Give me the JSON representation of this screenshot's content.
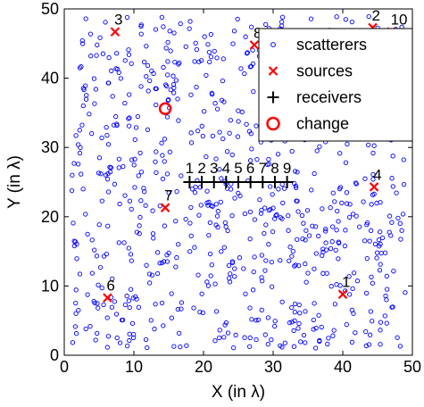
{
  "chart_data": {
    "type": "scatter",
    "title": "",
    "xlabel": "X (in λ)",
    "ylabel": "Y (in λ)",
    "xlim": [
      0,
      50
    ],
    "ylim": [
      0,
      50
    ],
    "xticks": [
      0,
      10,
      20,
      30,
      40,
      50
    ],
    "yticks": [
      0,
      10,
      20,
      30,
      40,
      50
    ],
    "grid": false,
    "legend_position": "top-right",
    "colors": {
      "scatterers": "#0000ff",
      "sources": "#ff0000",
      "receivers": "#000000",
      "change": "#ff0000"
    },
    "legend": [
      {
        "key": "scatterers",
        "label": "scatterers",
        "marker": "circle"
      },
      {
        "key": "sources",
        "label": "sources",
        "marker": "x"
      },
      {
        "key": "receivers",
        "label": "receivers",
        "marker": "plus"
      },
      {
        "key": "change",
        "label": "change",
        "marker": "large-circle"
      }
    ],
    "sources": [
      {
        "label": "1",
        "x": 40.0,
        "y": 8.8
      },
      {
        "label": "2",
        "x": 44.3,
        "y": 47.3
      },
      {
        "label": "3",
        "x": 7.3,
        "y": 46.7
      },
      {
        "label": "4",
        "x": 44.5,
        "y": 24.3
      },
      {
        "label": "6",
        "x": 6.2,
        "y": 8.3
      },
      {
        "label": "7",
        "x": 14.5,
        "y": 21.3
      },
      {
        "label": "8",
        "x": 27.3,
        "y": 44.8
      },
      {
        "label": "10",
        "x": 47.0,
        "y": 46.7
      }
    ],
    "receivers": {
      "y": 25,
      "points": [
        {
          "label": "1",
          "x": 18.0
        },
        {
          "label": "2",
          "x": 19.75
        },
        {
          "label": "3",
          "x": 21.5
        },
        {
          "label": "4",
          "x": 23.25
        },
        {
          "label": "5",
          "x": 25.0
        },
        {
          "label": "6",
          "x": 26.75
        },
        {
          "label": "7",
          "x": 28.5
        },
        {
          "label": "8",
          "x": 30.25
        },
        {
          "label": "9",
          "x": 32.0
        }
      ]
    },
    "change": {
      "x": 14.5,
      "y": 35.6
    },
    "scatterers": {
      "count": 800,
      "region": {
        "x": [
          1,
          49
        ],
        "y": [
          1,
          49
        ]
      },
      "distribution": "uniform-random"
    }
  }
}
